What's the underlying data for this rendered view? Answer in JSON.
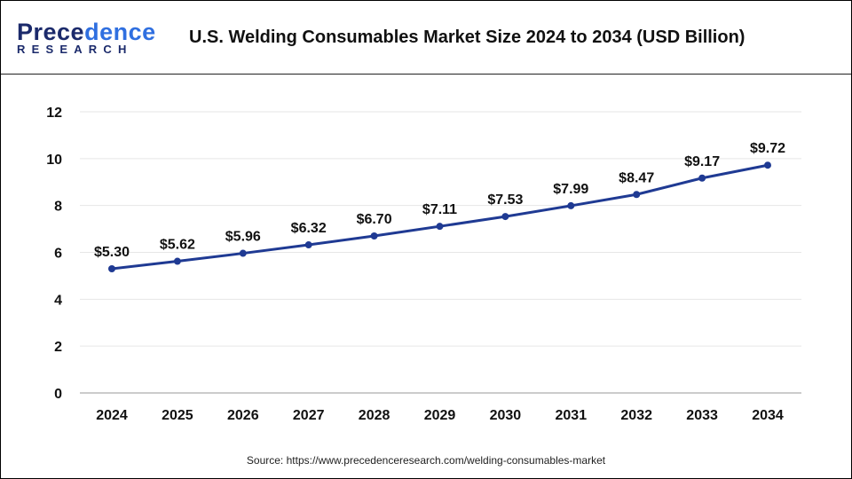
{
  "logo": {
    "line1a": "Prece",
    "line1b": "dence",
    "line2": "RESEARCH"
  },
  "title": "U.S. Welding Consumables Market Size 2024 to 2034 (USD Billion)",
  "source": "Source: https://www.precedenceresearch.com/welding-consumables-market",
  "colors": {
    "line": "#1f3a93",
    "grid": "#e6e6e6"
  },
  "chart_data": {
    "type": "line",
    "title": "U.S. Welding Consumables Market Size 2024 to 2034 (USD Billion)",
    "categories": [
      "2024",
      "2025",
      "2026",
      "2027",
      "2028",
      "2029",
      "2030",
      "2031",
      "2032",
      "2033",
      "2034"
    ],
    "values": [
      5.3,
      5.62,
      5.96,
      6.32,
      6.7,
      7.11,
      7.53,
      7.99,
      8.47,
      9.17,
      9.72
    ],
    "labels": [
      "$5.30",
      "$5.62",
      "$5.96",
      "$6.32",
      "$6.70",
      "$7.11",
      "$7.53",
      "$7.99",
      "$8.47",
      "$9.17",
      "$9.72"
    ],
    "yticks": [
      0,
      2,
      4,
      6,
      8,
      10,
      12
    ],
    "ylim": [
      0,
      12
    ],
    "grid": true,
    "legend": "none"
  }
}
